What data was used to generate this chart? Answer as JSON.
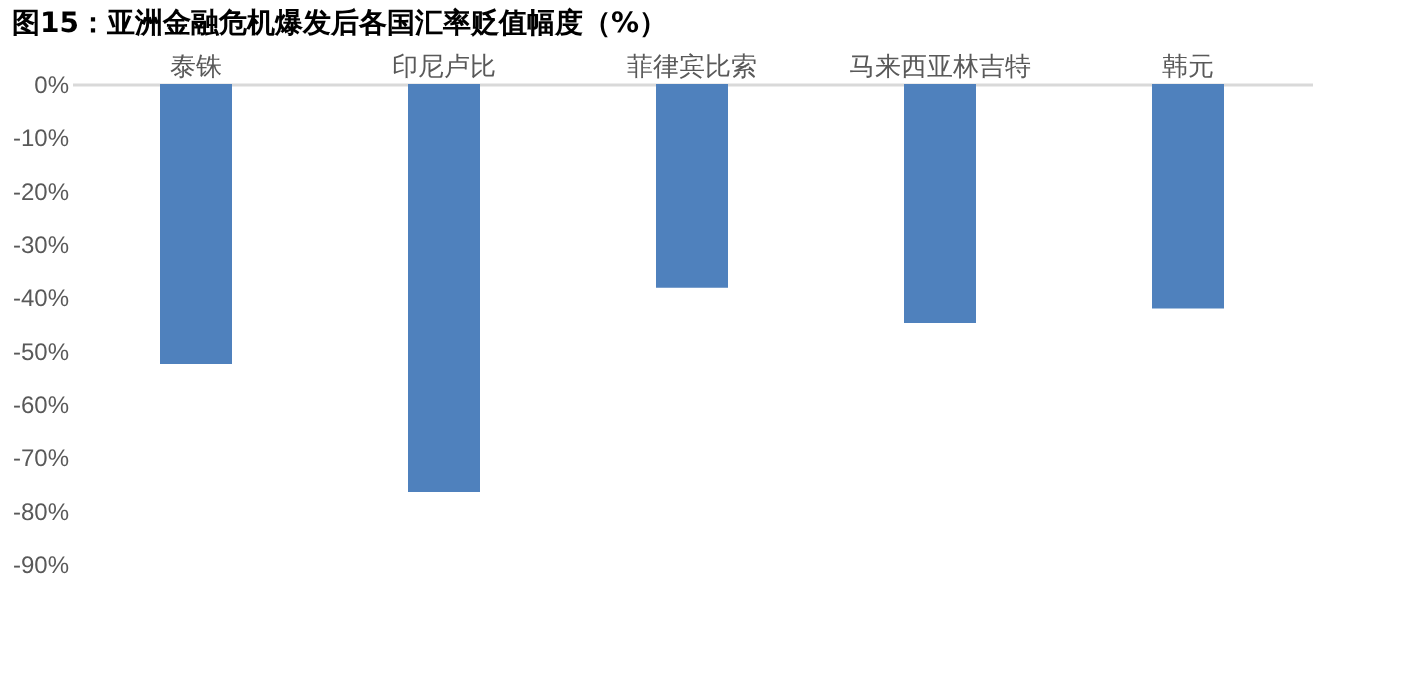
{
  "chart_data": {
    "type": "bar",
    "title": "图15：亚洲金融危机爆发后各国汇率贬值幅度（%）",
    "categories": [
      "泰铢",
      "印尼卢比",
      "菲律宾比索",
      "马来西亚林吉特",
      "韩元"
    ],
    "values": [
      -52.5,
      -76.5,
      -38.2,
      -44.8,
      -42.1
    ],
    "color": "#4f81bd",
    "ylim": [
      -90,
      0
    ],
    "yticks": [
      {
        "value": 0,
        "label": "0%"
      },
      {
        "value": -10,
        "label": "-10%"
      },
      {
        "value": -20,
        "label": "-20%"
      },
      {
        "value": -30,
        "label": "-30%"
      },
      {
        "value": -40,
        "label": "-40%"
      },
      {
        "value": -50,
        "label": "-50%"
      },
      {
        "value": -60,
        "label": "-60%"
      },
      {
        "value": -70,
        "label": "-70%"
      },
      {
        "value": -80,
        "label": "-80%"
      },
      {
        "value": -90,
        "label": "-90%"
      }
    ],
    "grid": false
  }
}
